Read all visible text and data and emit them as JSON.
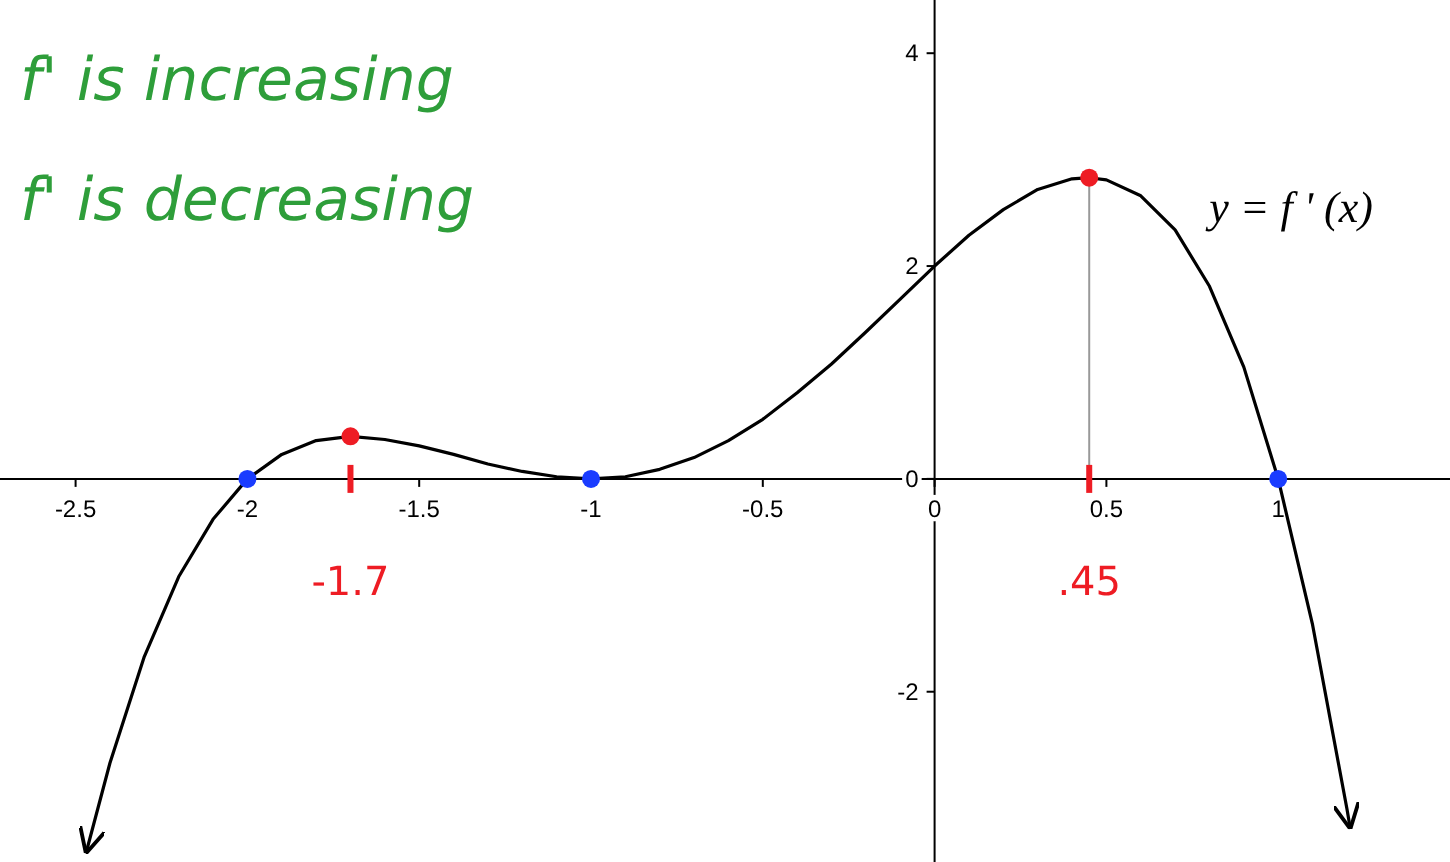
{
  "chart_data": {
    "type": "line",
    "xlim": [
      -2.72,
      1.5
    ],
    "ylim": [
      -3.6,
      4.5
    ],
    "xticks": [
      -2.5,
      -2,
      -1.5,
      -1,
      -0.5,
      0,
      0.5,
      1
    ],
    "yticks": [
      -2,
      0,
      2,
      4
    ],
    "grid": false,
    "series": [
      {
        "name": "y = f ' (x)",
        "color": "#000000",
        "marker": "none",
        "x": [
          -2.47,
          -2.4,
          -2.3,
          -2.2,
          -2.1,
          -2,
          -1.9,
          -1.8,
          -1.7,
          -1.6,
          -1.5,
          -1.4,
          -1.3,
          -1.2,
          -1.1,
          -1,
          -0.9,
          -0.8,
          -0.7,
          -0.6,
          -0.5,
          -0.4,
          -0.3,
          -0.2,
          -0.1,
          0,
          0.1,
          0.2,
          0.3,
          0.4,
          0.45,
          0.5,
          0.6,
          0.7,
          0.8,
          0.9,
          1,
          1.1,
          1.2,
          1.21
        ],
        "values": [
          -3.52,
          -2.67,
          -1.67,
          -0.92,
          -0.38,
          0,
          0.23,
          0.36,
          0.4,
          0.37,
          0.31,
          0.23,
          0.14,
          0.07,
          0.02,
          0,
          0.02,
          0.09,
          0.2,
          0.36,
          0.56,
          0.81,
          1.08,
          1.38,
          1.69,
          2,
          2.29,
          2.53,
          2.72,
          2.82,
          2.83,
          2.81,
          2.66,
          2.34,
          1.81,
          1.05,
          0,
          -1.37,
          -3.1,
          -3.29
        ]
      },
      {
        "type": "line",
        "color": "#999999",
        "marker": "none",
        "x": [
          0.45,
          0.45
        ],
        "values": [
          0,
          2.83
        ]
      },
      {
        "type": "scatter",
        "color": "#1a3cff",
        "marker": "circle",
        "x": [
          -2,
          -1,
          1
        ],
        "values": [
          0,
          0,
          0
        ]
      },
      {
        "type": "scatter",
        "color": "#ee1c24",
        "marker": "circle",
        "x": [
          -1.7,
          0.45
        ],
        "values": [
          0.4,
          2.83
        ]
      }
    ],
    "annotations": [
      "f' is increasing",
      "f' is decreasing",
      "-1.7",
      ".45"
    ]
  }
}
